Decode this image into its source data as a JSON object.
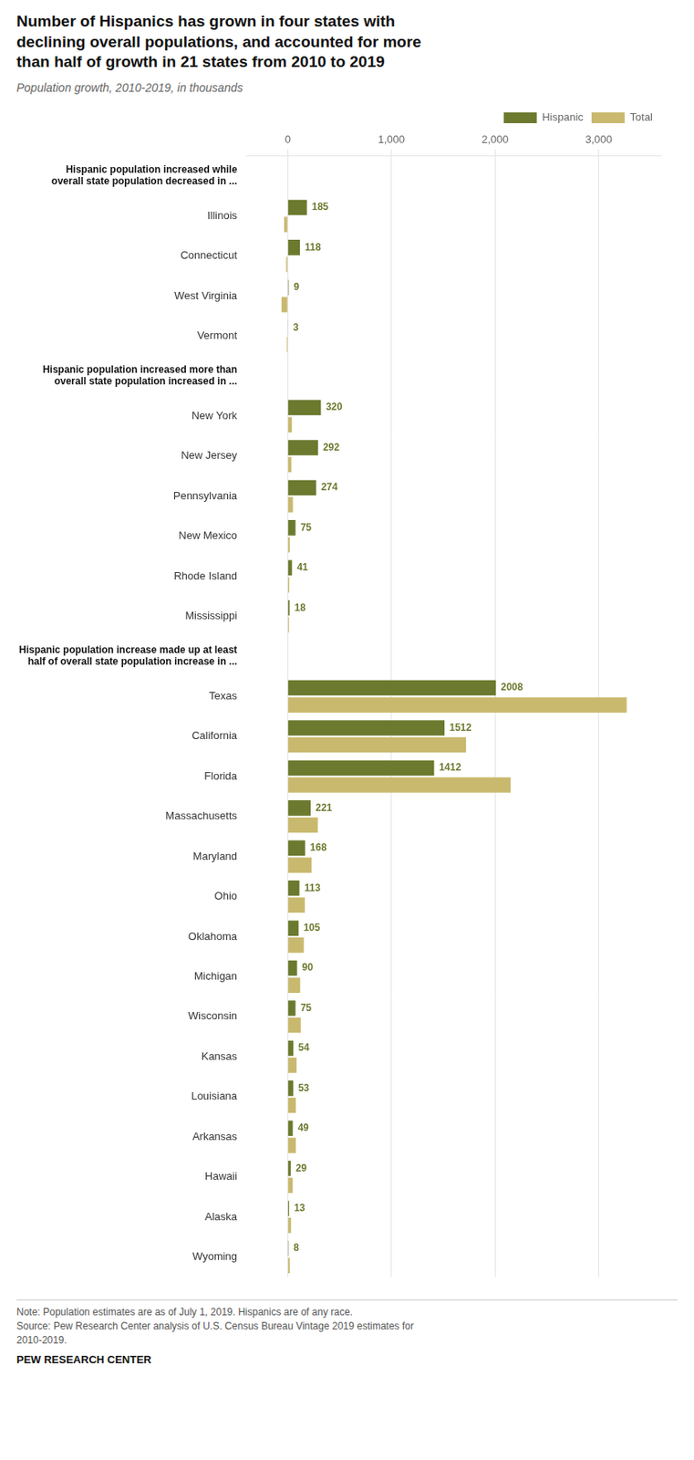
{
  "chart_data": {
    "type": "bar",
    "orientation": "horizontal",
    "title": "Number of Hispanics has grown in four states with\ndeclining overall populations, and accounted for more\nthan half of growth in 21 states from 2010 to 2019",
    "subtitle": "Population growth, 2010-2019, in thousands",
    "note": "Note: Population estimates are as of July 1, 2019. Hispanics are of any race.\nSource: Pew Research Center analysis of U.S. Census Bureau Vintage 2019 estimates for\n2010-2019.",
    "source": "PEW RESEARCH CENTER",
    "groups": [
      {
        "label": "Hispanic population increased while\noverall state population decreased in ...",
        "categories": [
          "Illinois",
          "Connecticut",
          "West Virginia",
          "Vermont"
        ]
      },
      {
        "label": "Hispanic population increased more than\noverall state population increased in ...",
        "categories": [
          "New York",
          "New Jersey",
          "Pennsylvania",
          "New Mexico",
          "Rhode Island",
          "Mississippi"
        ]
      },
      {
        "label": "Hispanic population increase made up at least\nhalf of overall state population increase in ...",
        "categories": [
          "Texas",
          "California",
          "Florida",
          "Massachusetts",
          "Maryland",
          "Ohio",
          "Oklahoma",
          "Michigan",
          "Wisconsin",
          "Kansas",
          "Louisiana",
          "Arkansas",
          "Hawaii",
          "Alaska",
          "Wyoming"
        ]
      }
    ],
    "series": [
      {
        "name": "Hispanic",
        "color": "#6b7a2e",
        "data_labels": true,
        "values": [
          185,
          118,
          9,
          3,
          320,
          292,
          274,
          75,
          41,
          18,
          2008,
          1512,
          1412,
          221,
          168,
          113,
          105,
          90,
          75,
          54,
          53,
          49,
          29,
          13,
          8
        ]
      },
      {
        "name": "Total",
        "color": "#c9b96e",
        "values": [
          -35,
          -15,
          -60,
          -10,
          40,
          35,
          50,
          20,
          15,
          12,
          3270,
          1720,
          2150,
          290,
          230,
          165,
          155,
          120,
          125,
          85,
          78,
          78,
          48,
          32,
          20
        ]
      }
    ],
    "xlim": [
      -400,
      3600
    ],
    "xticks": [
      0,
      {
        "value": 1000,
        "label": "1,000"
      },
      {
        "value": 2000,
        "label": "2,000"
      },
      {
        "value": 3000,
        "label": "3,000"
      }
    ],
    "grid": true,
    "legend": "upper right"
  }
}
